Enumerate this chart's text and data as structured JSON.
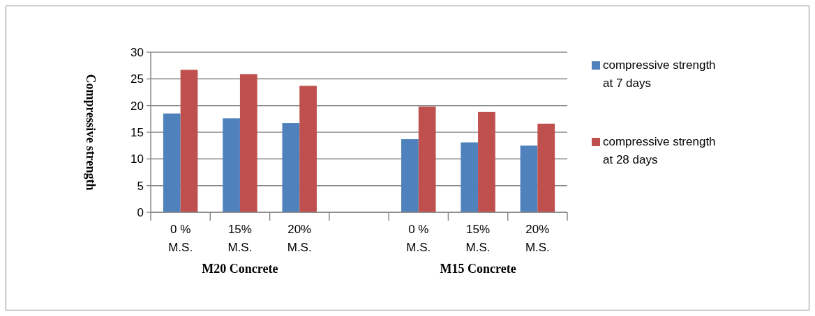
{
  "chart_data": {
    "type": "bar",
    "ylabel": "Compressive strength",
    "categories": [
      "0 % M.S.",
      "15% M.S.",
      "20% M.S.",
      null,
      "0 % M.S.",
      "15% M.S.",
      "20% M.S."
    ],
    "series": [
      {
        "name": "compressive strength at 7 days",
        "color": "#4f81bd",
        "values": [
          18.5,
          17.6,
          16.7,
          null,
          13.7,
          13.1,
          12.5
        ]
      },
      {
        "name": "compressive strength at 28 days",
        "color": "#c0504d",
        "values": [
          26.7,
          25.9,
          23.7,
          null,
          19.8,
          18.8,
          16.6
        ]
      }
    ],
    "annotations": [
      "M20 Concrete",
      "M15 Concrete"
    ],
    "ylim": [
      0,
      30
    ],
    "yticks": [
      0,
      5,
      10,
      15,
      20,
      25,
      30
    ],
    "grid": "y",
    "legend": "right"
  }
}
